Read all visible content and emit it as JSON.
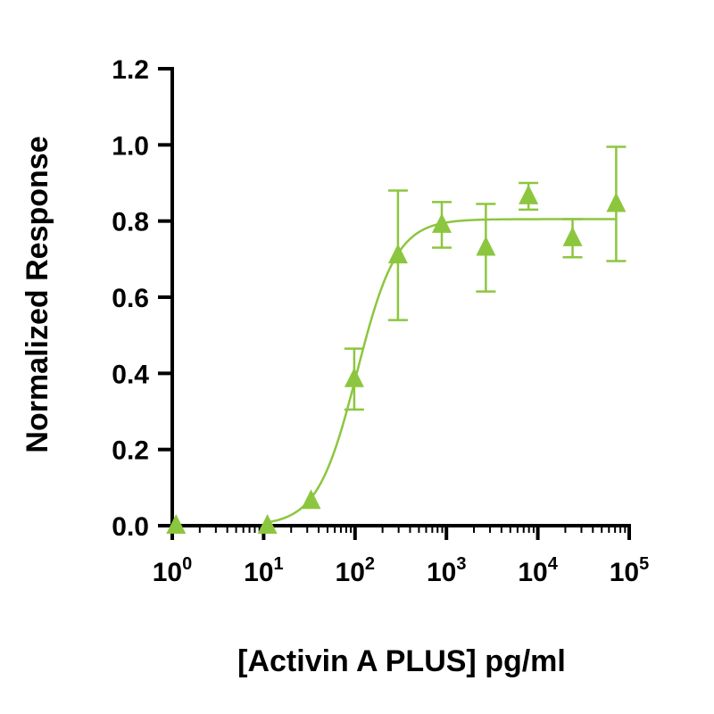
{
  "chart_data": {
    "type": "scatter",
    "title": "",
    "xlabel": "[Activin A PLUS] pg/ml",
    "ylabel": "Normalized Response",
    "x_scale": "log10",
    "xlim": [
      1,
      100000
    ],
    "ylim": [
      0,
      1.2
    ],
    "x_ticks": [
      {
        "base": "10",
        "exp": "0",
        "value": 1
      },
      {
        "base": "10",
        "exp": "1",
        "value": 10
      },
      {
        "base": "10",
        "exp": "2",
        "value": 100
      },
      {
        "base": "10",
        "exp": "3",
        "value": 1000
      },
      {
        "base": "10",
        "exp": "4",
        "value": 10000
      },
      {
        "base": "10",
        "exp": "5",
        "value": 100000
      }
    ],
    "y_ticks": [
      "0.0",
      "0.2",
      "0.4",
      "0.6",
      "0.8",
      "1.0",
      "1.2"
    ],
    "color": "#8cc63f",
    "marker": "triangle",
    "grid": false,
    "legend": "none",
    "points": [
      {
        "x": 1.1,
        "y": 0.0,
        "err": 0
      },
      {
        "x": 11,
        "y": 0.0,
        "err": 0
      },
      {
        "x": 33,
        "y": 0.065,
        "err": 0
      },
      {
        "x": 98,
        "y": 0.385,
        "err": 0.08
      },
      {
        "x": 295,
        "y": 0.71,
        "err": 0.17
      },
      {
        "x": 890,
        "y": 0.79,
        "err": 0.06
      },
      {
        "x": 2700,
        "y": 0.73,
        "err": 0.115
      },
      {
        "x": 7900,
        "y": 0.865,
        "err": 0.035
      },
      {
        "x": 24000,
        "y": 0.755,
        "err": 0.05
      },
      {
        "x": 72000,
        "y": 0.845,
        "err": 0.15
      }
    ],
    "fit": {
      "type": "4PL",
      "bottom": 0,
      "top": 0.805,
      "ec50": 105,
      "hill": 2.0
    }
  }
}
